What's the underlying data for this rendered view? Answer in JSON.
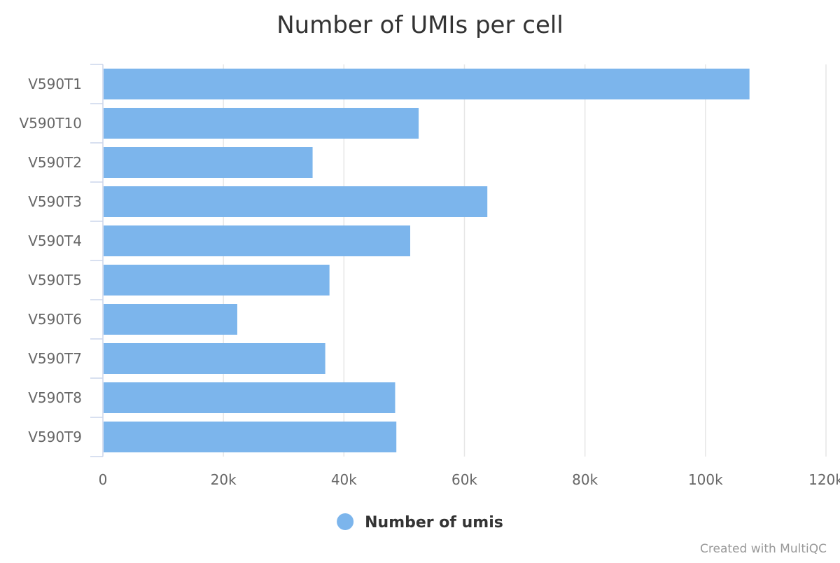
{
  "chart_data": {
    "type": "bar",
    "orientation": "horizontal",
    "title": "Number of UMIs per cell",
    "categories": [
      "V590T1",
      "V590T10",
      "V590T2",
      "V590T3",
      "V590T4",
      "V590T5",
      "V590T6",
      "V590T7",
      "V590T8",
      "V590T9"
    ],
    "series": [
      {
        "name": "Number of umis",
        "values": [
          107300,
          52400,
          34800,
          63800,
          51000,
          37600,
          22300,
          36900,
          48500,
          48700
        ],
        "color": "#7cb5ec"
      }
    ],
    "xlim": [
      0,
      120000
    ],
    "xticks": [
      0,
      20000,
      40000,
      60000,
      80000,
      100000,
      120000
    ],
    "xtick_labels": [
      "0",
      "20k",
      "40k",
      "60k",
      "80k",
      "100k",
      "120k"
    ],
    "grid": true,
    "legend_position": "bottom-center"
  },
  "credit": "Created with MultiQC",
  "colors": {
    "title": "#333333",
    "axis_label": "#666666",
    "gridline": "#e6e6e6",
    "axis_line": "#ccd6eb",
    "credit": "#999999"
  }
}
